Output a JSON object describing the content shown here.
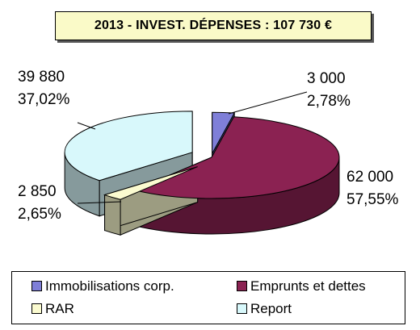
{
  "chart_data": {
    "type": "pie",
    "title": "2013 - INVEST. DÉPENSES : 107 730 €",
    "slices": [
      {
        "label": "Immobilisations corp.",
        "value": 3000,
        "value_text": "3 000",
        "percent_text": "2,78%",
        "color": "#7f7fd8"
      },
      {
        "label": "Emprunts et dettes",
        "value": 62000,
        "value_text": "62 000",
        "percent_text": "57,55%",
        "color": "#8b2252"
      },
      {
        "label": "RAR",
        "value": 2850,
        "value_text": "2 850",
        "percent_text": "2,65%",
        "color": "#fbfbd0"
      },
      {
        "label": "Report",
        "value": 39880,
        "value_text": "39 880",
        "percent_text": "37,02%",
        "color": "#d8f8fb"
      }
    ],
    "legend_position": "bottom"
  }
}
